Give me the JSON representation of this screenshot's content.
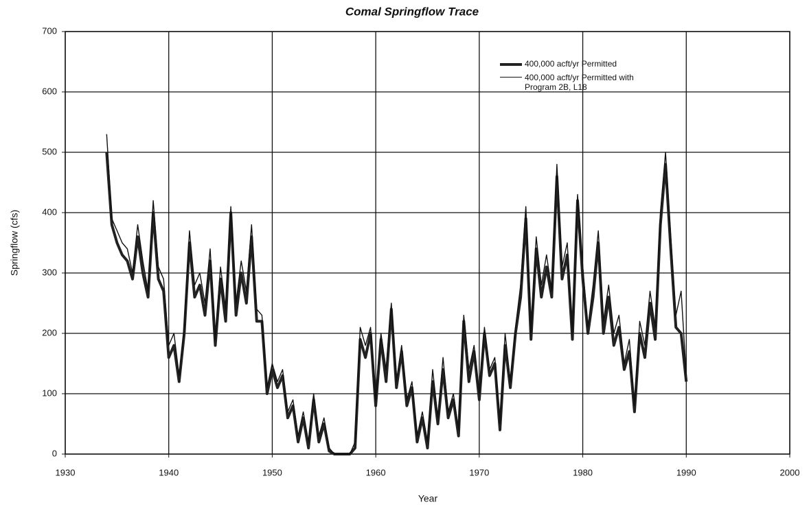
{
  "chart_data": {
    "type": "line",
    "title": "Comal Springflow Trace",
    "x_label": "Year",
    "y_label": "Springflow (cfs)",
    "x": [
      1934,
      1934.5,
      1935,
      1935.5,
      1936,
      1936.5,
      1937,
      1937.5,
      1938,
      1938.5,
      1939,
      1939.5,
      1940,
      1940.5,
      1941,
      1941.5,
      1942,
      1942.5,
      1943,
      1943.5,
      1944,
      1944.5,
      1945,
      1945.5,
      1946,
      1946.5,
      1947,
      1947.5,
      1948,
      1948.5,
      1949,
      1949.5,
      1950,
      1950.5,
      1951,
      1951.5,
      1952,
      1952.5,
      1953,
      1953.5,
      1954,
      1954.5,
      1955,
      1955.5,
      1956,
      1956.5,
      1957,
      1957.5,
      1958,
      1958.5,
      1959,
      1959.5,
      1960,
      1960.5,
      1961,
      1961.5,
      1962,
      1962.5,
      1963,
      1963.5,
      1964,
      1964.5,
      1965,
      1965.5,
      1966,
      1966.5,
      1967,
      1967.5,
      1968,
      1968.5,
      1969,
      1969.5,
      1970,
      1970.5,
      1971,
      1971.5,
      1972,
      1972.5,
      1973,
      1973.5,
      1974,
      1974.5,
      1975,
      1975.5,
      1976,
      1976.5,
      1977,
      1977.5,
      1978,
      1978.5,
      1979,
      1979.5,
      1980,
      1980.5,
      1981,
      1981.5,
      1982,
      1982.5,
      1983,
      1983.5,
      1984,
      1984.5,
      1985,
      1985.5,
      1986,
      1986.5,
      1987,
      1987.5,
      1988,
      1988.5,
      1989,
      1989.5,
      1990
    ],
    "series": [
      {
        "name": "400,000 acft/yr Permitted",
        "color": "#222222",
        "width": 4,
        "values": [
          500,
          380,
          350,
          330,
          320,
          290,
          360,
          300,
          260,
          400,
          290,
          270,
          160,
          180,
          120,
          200,
          350,
          260,
          280,
          230,
          320,
          180,
          290,
          220,
          400,
          230,
          300,
          250,
          360,
          220,
          220,
          100,
          140,
          110,
          130,
          60,
          80,
          20,
          60,
          10,
          90,
          20,
          50,
          5,
          0,
          0,
          0,
          0,
          10,
          190,
          160,
          200,
          80,
          190,
          120,
          240,
          110,
          170,
          80,
          110,
          20,
          60,
          10,
          120,
          50,
          140,
          60,
          90,
          30,
          220,
          120,
          170,
          90,
          200,
          130,
          150,
          40,
          180,
          110,
          200,
          260,
          390,
          190,
          340,
          260,
          310,
          260,
          460,
          290,
          330,
          190,
          420,
          290,
          200,
          260,
          350,
          200,
          260,
          180,
          210,
          140,
          170,
          70,
          200,
          160,
          250,
          190,
          380,
          480,
          340,
          210,
          200,
          120
        ]
      },
      {
        "name": "400,000 acft/yr Permitted with Program 2B, L18",
        "color": "#111111",
        "width": 1.4,
        "values": [
          530,
          390,
          370,
          350,
          340,
          300,
          380,
          320,
          270,
          420,
          310,
          290,
          180,
          200,
          130,
          210,
          370,
          280,
          300,
          250,
          340,
          190,
          310,
          240,
          410,
          250,
          320,
          270,
          380,
          240,
          230,
          110,
          150,
          120,
          140,
          70,
          90,
          30,
          70,
          20,
          100,
          30,
          60,
          10,
          0,
          0,
          0,
          0,
          20,
          210,
          180,
          210,
          90,
          200,
          140,
          250,
          120,
          180,
          90,
          120,
          30,
          70,
          20,
          140,
          60,
          160,
          70,
          100,
          40,
          230,
          140,
          180,
          100,
          210,
          140,
          160,
          50,
          200,
          120,
          210,
          280,
          410,
          200,
          360,
          280,
          330,
          270,
          480,
          310,
          350,
          200,
          430,
          310,
          210,
          280,
          370,
          220,
          280,
          200,
          230,
          150,
          190,
          80,
          220,
          180,
          270,
          210,
          400,
          500,
          360,
          230,
          270,
          130
        ]
      }
    ],
    "xlim": [
      1930,
      2000
    ],
    "xticks": [
      1930,
      1940,
      1950,
      1960,
      1970,
      1980,
      1990,
      2000
    ],
    "ylim": [
      0,
      700
    ],
    "yticks": [
      0,
      100,
      200,
      300,
      400,
      500,
      600,
      700
    ],
    "grid": true
  }
}
